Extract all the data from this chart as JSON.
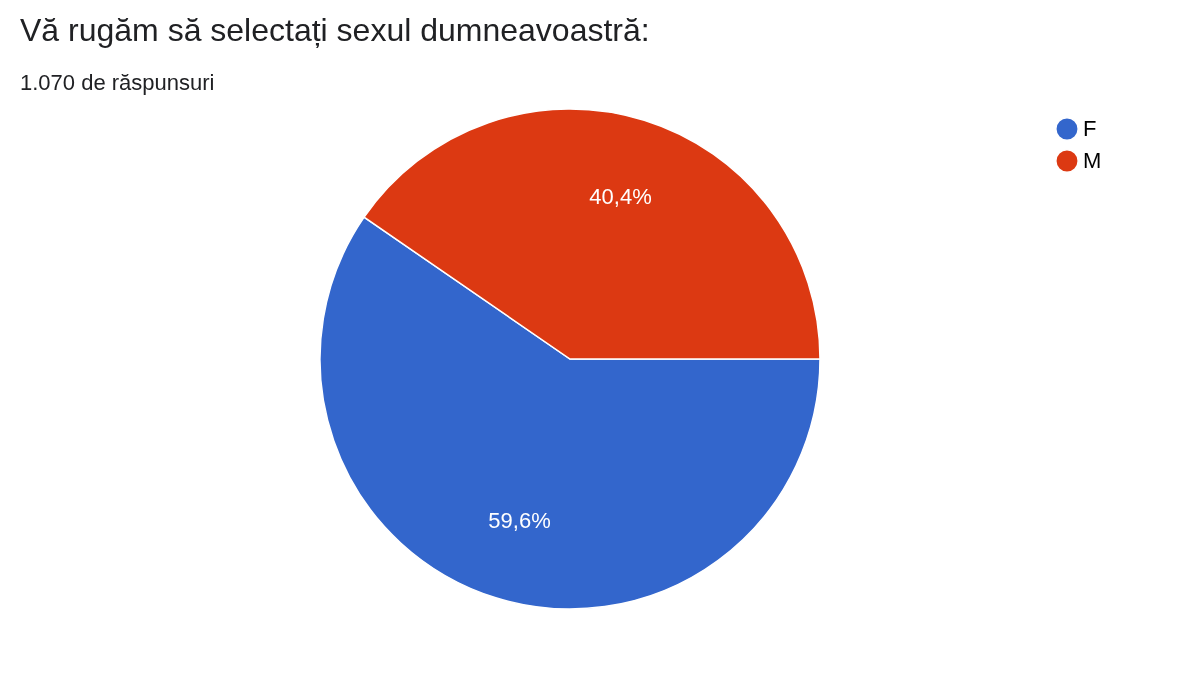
{
  "chart_data": {
    "type": "pie",
    "title": "Vă rugăm să selectați sexul dumneavoastră:",
    "subtitle": "1.070 de răspunsuri",
    "categories": [
      "F",
      "M"
    ],
    "values": [
      59.6,
      40.4
    ],
    "colors": [
      "#3366cc",
      "#dc3912"
    ],
    "value_labels": [
      "59,6%",
      "40,4%"
    ],
    "legend": "top right"
  }
}
